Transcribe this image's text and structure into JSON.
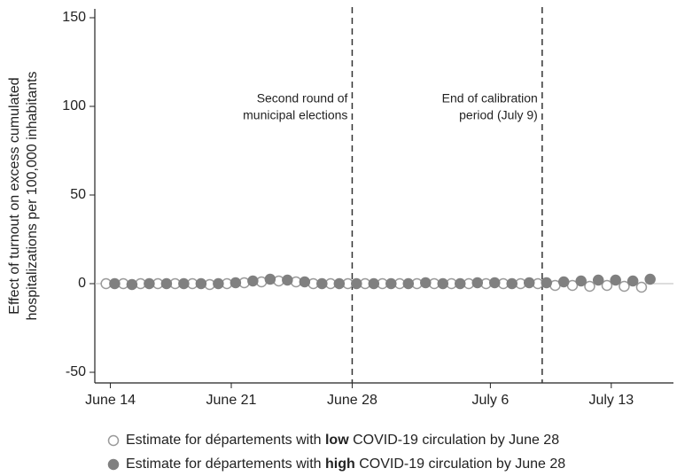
{
  "chart_data": {
    "type": "scatter",
    "ylabel": [
      "Effect of turnout on excess cumulated",
      "hospitalizations per 100,000 inhabitants"
    ],
    "xlim": [
      -0.9,
      32.6
    ],
    "xticks": [
      {
        "value": 0,
        "label": "June 14"
      },
      {
        "value": 7,
        "label": "June 21"
      },
      {
        "value": 14,
        "label": "June 28"
      },
      {
        "value": 22,
        "label": "July 6"
      },
      {
        "value": 29,
        "label": "July 13"
      }
    ],
    "ylim": [
      -56,
      155
    ],
    "yticks": [
      -50,
      0,
      50,
      100,
      150
    ],
    "zero_line": true,
    "annotations": [
      {
        "x": 14,
        "text": [
          "Second round of",
          "municipal elections"
        ]
      },
      {
        "x": 25,
        "text": [
          "End of calibration",
          "period (July 9)"
        ]
      }
    ],
    "series": [
      {
        "name_parts": [
          "Estimate for départements with ",
          "low",
          " COVID-19 circulation by June 28"
        ],
        "color": "#9a9a9a",
        "filled": false,
        "x": [
          -0.25,
          0.75,
          1.75,
          2.75,
          3.75,
          4.75,
          5.75,
          6.75,
          7.75,
          8.75,
          9.75,
          10.75,
          11.75,
          12.75,
          13.75,
          14.75,
          15.75,
          16.75,
          17.75,
          18.75,
          19.75,
          20.75,
          21.75,
          22.75,
          23.75,
          24.75,
          25.75,
          26.75,
          27.75,
          28.75,
          29.75,
          30.75
        ],
        "values": [
          0,
          0,
          0,
          0,
          0,
          0,
          -0.5,
          0,
          0.5,
          1,
          1.5,
          1,
          0,
          0,
          0,
          0,
          0,
          0,
          0,
          0,
          0,
          0,
          0,
          0,
          0,
          0,
          -1,
          -1,
          -1.5,
          -1,
          -1.5,
          -2
        ]
      },
      {
        "name_parts": [
          "Estimate for départements with ",
          "high",
          " COVID-19 circulation by June 28"
        ],
        "color": "#808080",
        "filled": true,
        "x": [
          0.25,
          1.25,
          2.25,
          3.25,
          4.25,
          5.25,
          6.25,
          7.25,
          8.25,
          9.25,
          10.25,
          11.25,
          12.25,
          13.25,
          14.25,
          15.25,
          16.25,
          17.25,
          18.25,
          19.25,
          20.25,
          21.25,
          22.25,
          23.25,
          24.25,
          25.25,
          26.25,
          27.25,
          28.25,
          29.25,
          30.25,
          31.25
        ],
        "values": [
          0,
          -0.5,
          0,
          0,
          0,
          0,
          0,
          0.5,
          1.5,
          2.5,
          2,
          1,
          0,
          0,
          0,
          0,
          0,
          0,
          0.5,
          0,
          0,
          0.5,
          0.5,
          0,
          0.5,
          0.5,
          1,
          1.5,
          2,
          2,
          1.5,
          2.5
        ]
      }
    ]
  }
}
